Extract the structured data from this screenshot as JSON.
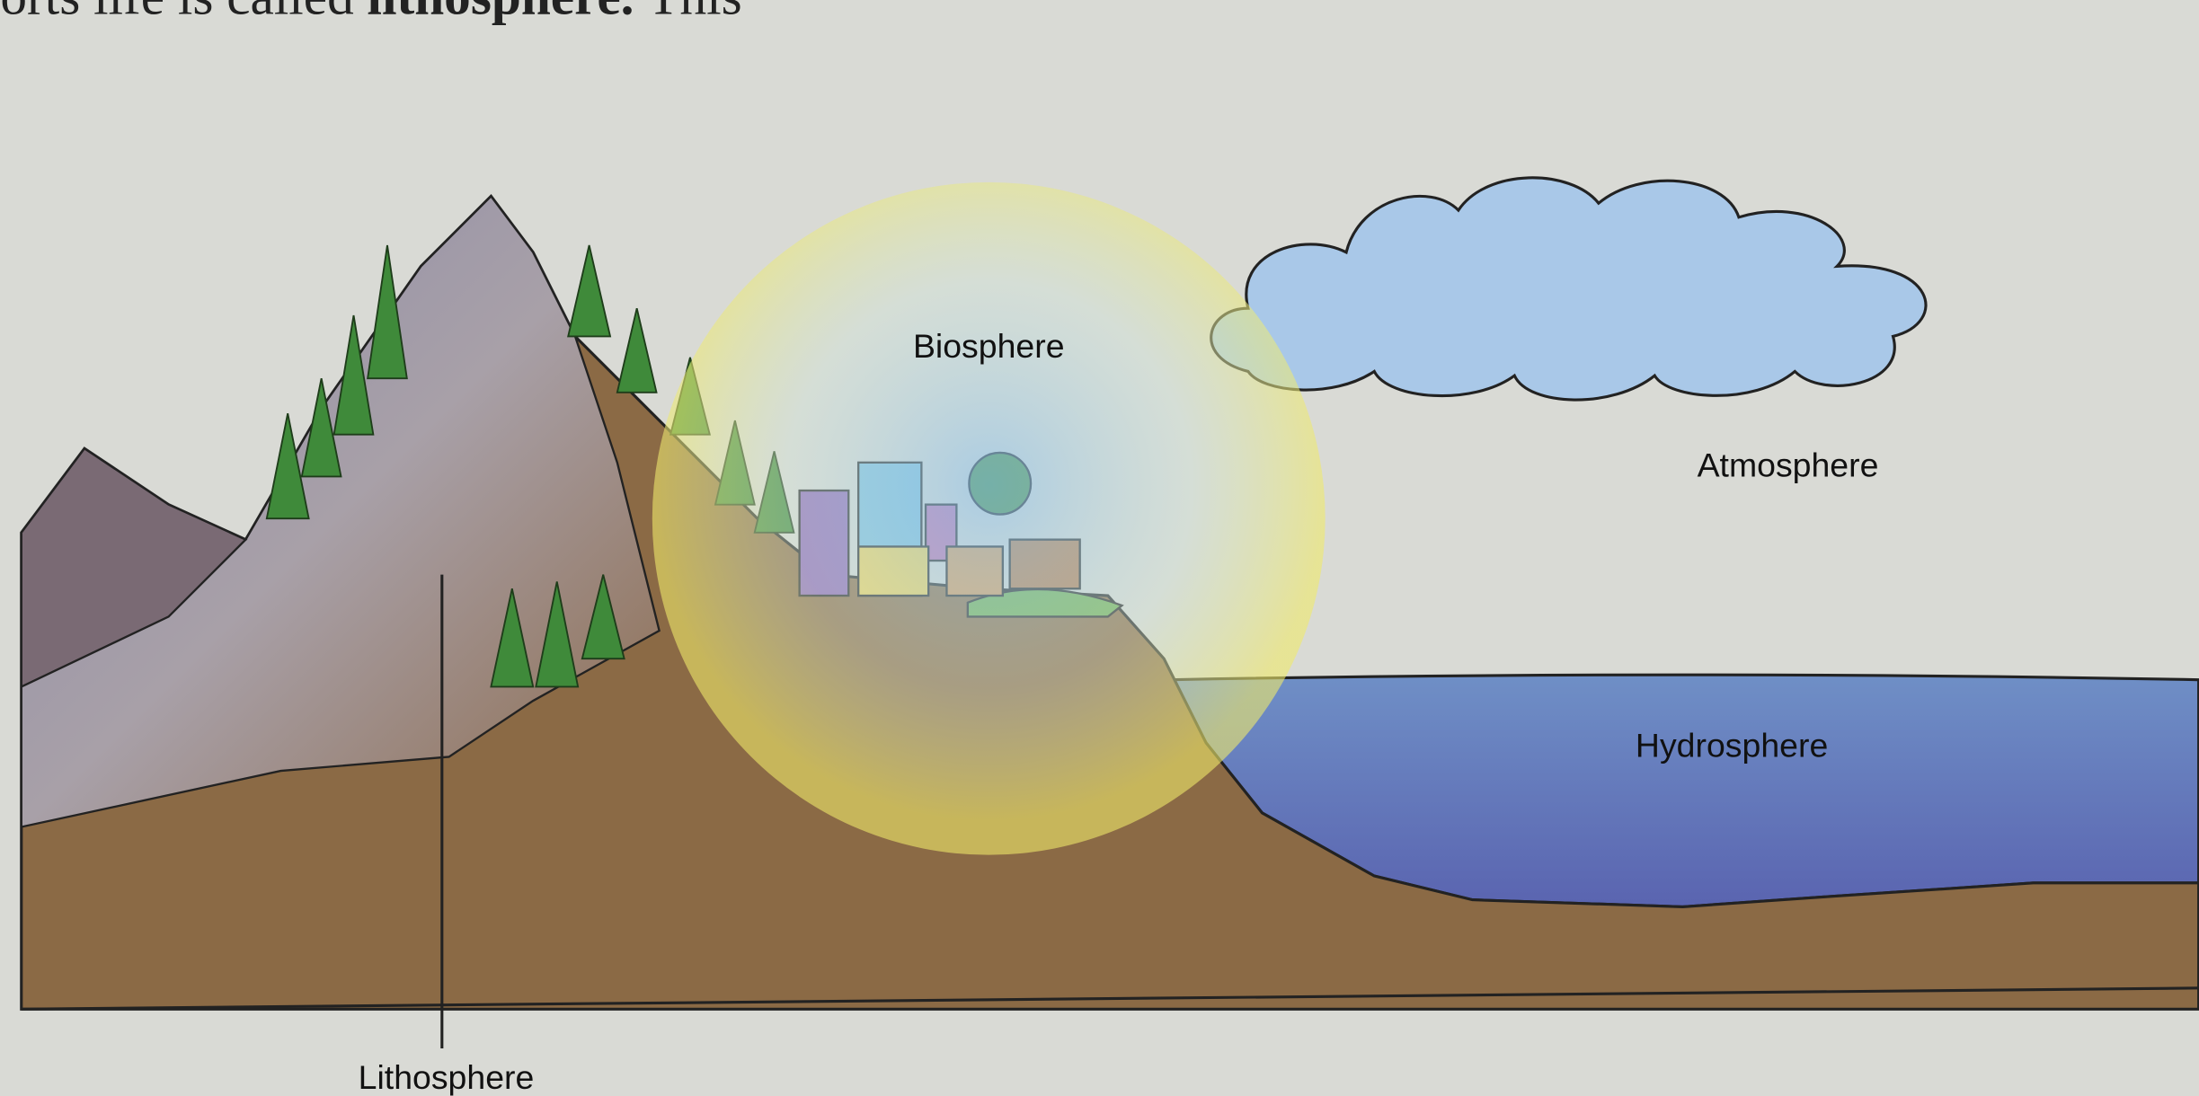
{
  "header_fragment": {
    "text": "orts life is called",
    "bold": "lithosphere.",
    "tail": "This"
  },
  "labels": {
    "biosphere": "Biosphere",
    "atmosphere": "Atmosphere",
    "hydrosphere": "Hydrosphere",
    "lithosphere": "Lithosphere"
  }
}
